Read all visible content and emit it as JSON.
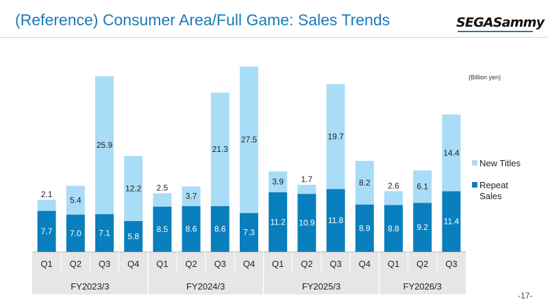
{
  "header": {
    "title": "(Reference) Consumer Area/Full Game: Sales Trends",
    "logo_text": "SEGASammy"
  },
  "footer": {
    "page_number": "-17-"
  },
  "colors": {
    "title": "#1a7ab8",
    "repeat_sales": "#0a7fbd",
    "new_titles": "#a9dcf6",
    "axis_band": "#e6e6e6"
  },
  "chart_data": {
    "type": "bar",
    "stacked": true,
    "unit_label": "(Billion yen)",
    "categories": [
      "Q1",
      "Q2",
      "Q3",
      "Q4",
      "Q1",
      "Q2",
      "Q3",
      "Q4",
      "Q1",
      "Q2",
      "Q3",
      "Q4",
      "Q1",
      "Q2",
      "Q3"
    ],
    "groups": [
      {
        "label": "FY2023/3",
        "count": 4
      },
      {
        "label": "FY2024/3",
        "count": 4
      },
      {
        "label": "FY2025/3",
        "count": 4
      },
      {
        "label": "FY2026/3",
        "count": 3
      }
    ],
    "series": [
      {
        "name": "Repeat Sales",
        "values": [
          7.7,
          7.0,
          7.1,
          5.8,
          8.5,
          8.6,
          8.6,
          7.3,
          11.2,
          10.9,
          11.8,
          8.9,
          8.8,
          9.2,
          11.4
        ]
      },
      {
        "name": "New Titles",
        "values": [
          2.1,
          5.4,
          25.9,
          12.2,
          2.5,
          3.7,
          21.3,
          27.5,
          3.9,
          1.7,
          19.7,
          8.2,
          2.6,
          6.1,
          14.4
        ]
      }
    ],
    "legend": [
      {
        "name": "New Titles",
        "lines": [
          "New Titles"
        ]
      },
      {
        "name": "Repeat Sales",
        "lines": [
          "Repeat",
          "Sales"
        ]
      }
    ],
    "legend_position": "right",
    "ylim": [
      0,
      35
    ],
    "grid": false
  }
}
